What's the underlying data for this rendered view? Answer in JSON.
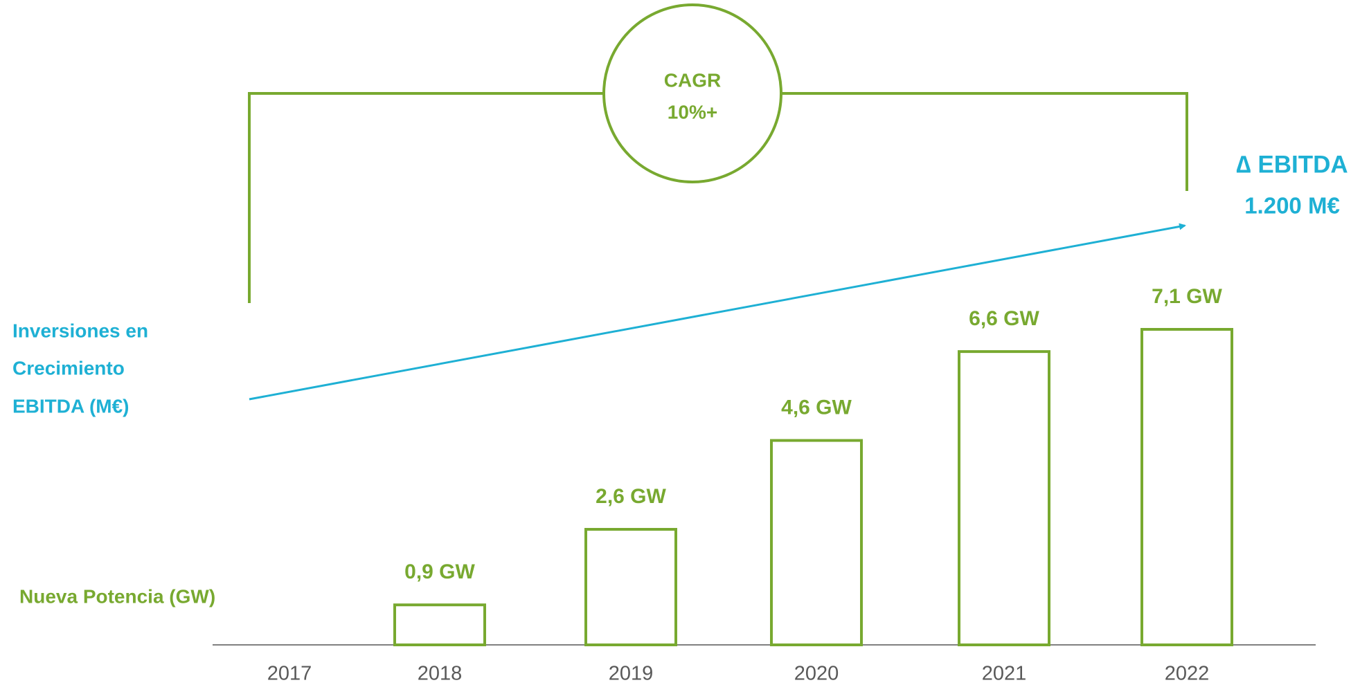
{
  "chart_data": {
    "type": "bar",
    "categories": [
      "2017",
      "2018",
      "2019",
      "2020",
      "2021",
      "2022"
    ],
    "values": [
      null,
      0.9,
      2.6,
      4.6,
      6.6,
      7.1
    ],
    "value_labels": [
      null,
      "0,9 GW",
      "2,6 GW",
      "4,6 GW",
      "6,6 GW",
      "7,1 GW"
    ],
    "color": "#78a930",
    "annotations": {
      "cagr": [
        "CAGR",
        "10%+"
      ],
      "ebitda": [
        "∆ EBITDA",
        "1.200 M€"
      ],
      "investment_label": [
        "Inversiones en",
        "Crecimiento",
        "EBITDA (M€)"
      ],
      "power_label": "Nueva Potencia (GW)"
    },
    "accent_color": "#1eb0d4"
  }
}
